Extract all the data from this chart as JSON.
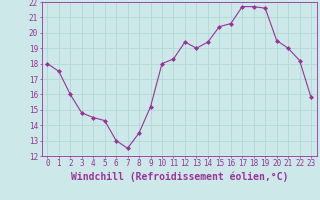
{
  "x": [
    0,
    1,
    2,
    3,
    4,
    5,
    6,
    7,
    8,
    9,
    10,
    11,
    12,
    13,
    14,
    15,
    16,
    17,
    18,
    19,
    20,
    21,
    22,
    23
  ],
  "y": [
    18.0,
    17.5,
    16.0,
    14.8,
    14.5,
    14.3,
    13.0,
    12.5,
    13.5,
    15.2,
    18.0,
    18.3,
    19.4,
    19.0,
    19.4,
    20.4,
    20.6,
    21.7,
    21.7,
    21.6,
    19.5,
    19.0,
    18.2,
    15.8
  ],
  "ylim": [
    12,
    22
  ],
  "xlim": [
    -0.5,
    23.5
  ],
  "yticks": [
    12,
    13,
    14,
    15,
    16,
    17,
    18,
    19,
    20,
    21,
    22
  ],
  "xticks": [
    0,
    1,
    2,
    3,
    4,
    5,
    6,
    7,
    8,
    9,
    10,
    11,
    12,
    13,
    14,
    15,
    16,
    17,
    18,
    19,
    20,
    21,
    22,
    23
  ],
  "xlabel": "Windchill (Refroidissement éolien,°C)",
  "line_color": "#993399",
  "marker": "D",
  "marker_size": 2.0,
  "bg_color": "#cce8e8",
  "grid_color": "#b0d8d8",
  "tick_label_fontsize": 5.5,
  "xlabel_fontsize": 7.0
}
